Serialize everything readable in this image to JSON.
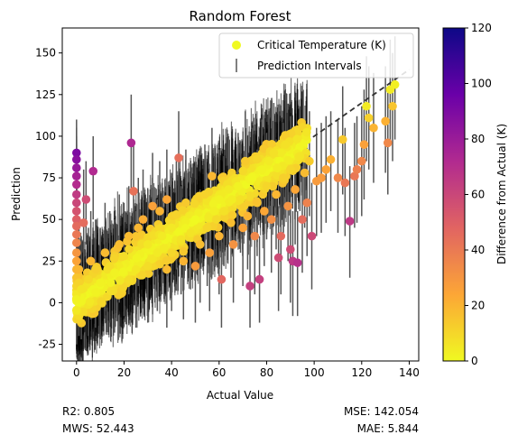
{
  "chart_data": {
    "type": "scatter",
    "title": "Random Forest",
    "xlabel": "Actual Value",
    "ylabel": "Prediction",
    "xlim": [
      -6,
      144
    ],
    "ylim": [
      -35,
      165
    ],
    "xticks": [
      0,
      20,
      40,
      60,
      80,
      100,
      120,
      140
    ],
    "yticks": [
      -25,
      0,
      25,
      50,
      75,
      100,
      125,
      150
    ],
    "grid": false,
    "legend": {
      "placement": "top-right",
      "entries": [
        {
          "label": "Critical Temperature (K)",
          "marker": "circle",
          "color": "#f0f921"
        },
        {
          "label": "Prediction Intervals",
          "marker": "vline",
          "color": "#555555"
        }
      ]
    },
    "reference_line": {
      "label": "",
      "x": [
        0,
        140
      ],
      "y": [
        0,
        140
      ],
      "style": "dashed",
      "color": "#333333"
    },
    "colorbar": {
      "label": "Difference from Actual (K)",
      "min": 0,
      "max": 120,
      "ticks": [
        0,
        20,
        40,
        60,
        80,
        100,
        120
      ],
      "colormap": "plasma_r",
      "stops": [
        "#f0f921",
        "#fca636",
        "#e16462",
        "#b12a90",
        "#6a00a8",
        "#0d0887"
      ]
    },
    "stats": {
      "r2": "R2: 0.805",
      "mws": "MWS: 52.443",
      "mse": "MSE: 142.054",
      "mae": "MAE: 5.844"
    },
    "points": [
      {
        "x": 0,
        "y": 90,
        "lo": 55,
        "hi": 110
      },
      {
        "x": 0,
        "y": 86,
        "lo": 50,
        "hi": 105
      },
      {
        "x": 0,
        "y": 81,
        "lo": 45,
        "hi": 100
      },
      {
        "x": 0,
        "y": 76,
        "lo": 40,
        "hi": 98
      },
      {
        "x": 0,
        "y": 71,
        "lo": 35,
        "hi": 95
      },
      {
        "x": 0,
        "y": 65,
        "lo": 30,
        "hi": 92
      },
      {
        "x": 0,
        "y": 60,
        "lo": 25,
        "hi": 88
      },
      {
        "x": 0,
        "y": 55,
        "lo": 20,
        "hi": 85
      },
      {
        "x": 0,
        "y": 50,
        "lo": 15,
        "hi": 80
      },
      {
        "x": 0,
        "y": 46,
        "lo": 10,
        "hi": 75
      },
      {
        "x": 0,
        "y": 41,
        "lo": 5,
        "hi": 70
      },
      {
        "x": 0,
        "y": 36,
        "lo": 0,
        "hi": 65
      },
      {
        "x": 0,
        "y": 30,
        "lo": -5,
        "hi": 60
      },
      {
        "x": 0,
        "y": 25,
        "lo": -10,
        "hi": 55
      },
      {
        "x": 0,
        "y": 20,
        "lo": -15,
        "hi": 50
      },
      {
        "x": 0,
        "y": 15,
        "lo": -20,
        "hi": 45
      },
      {
        "x": 0,
        "y": 10,
        "lo": -22,
        "hi": 40
      },
      {
        "x": 0,
        "y": 5,
        "lo": -25,
        "hi": 35
      },
      {
        "x": 0,
        "y": 2,
        "lo": -25,
        "hi": 30
      },
      {
        "x": 1,
        "y": 20,
        "lo": -15,
        "hi": 50
      },
      {
        "x": 1,
        "y": 12,
        "lo": -20,
        "hi": 45
      },
      {
        "x": 2,
        "y": 8,
        "lo": -22,
        "hi": 40
      },
      {
        "x": 3,
        "y": 48,
        "lo": 20,
        "hi": 80
      },
      {
        "x": 4,
        "y": 62,
        "lo": 35,
        "hi": 85
      },
      {
        "x": 5,
        "y": 14,
        "lo": -20,
        "hi": 45
      },
      {
        "x": 6,
        "y": 25,
        "lo": -10,
        "hi": 55
      },
      {
        "x": 7,
        "y": 79,
        "lo": 50,
        "hi": 100
      },
      {
        "x": 8,
        "y": 20,
        "lo": -15,
        "hi": 50
      },
      {
        "x": 10,
        "y": 12,
        "lo": -22,
        "hi": 45
      },
      {
        "x": 12,
        "y": 30,
        "lo": -5,
        "hi": 60
      },
      {
        "x": 14,
        "y": 22,
        "lo": -12,
        "hi": 55
      },
      {
        "x": 16,
        "y": 18,
        "lo": -18,
        "hi": 50
      },
      {
        "x": 18,
        "y": 35,
        "lo": 0,
        "hi": 65
      },
      {
        "x": 20,
        "y": 28,
        "lo": -8,
        "hi": 60
      },
      {
        "x": 23,
        "y": 96,
        "lo": 65,
        "hi": 125
      },
      {
        "x": 22,
        "y": 40,
        "lo": 5,
        "hi": 70
      },
      {
        "x": 24,
        "y": 67,
        "lo": 35,
        "hi": 95
      },
      {
        "x": 25,
        "y": 20,
        "lo": -15,
        "hi": 55
      },
      {
        "x": 26,
        "y": 45,
        "lo": 10,
        "hi": 75
      },
      {
        "x": 28,
        "y": 50,
        "lo": 15,
        "hi": 80
      },
      {
        "x": 30,
        "y": 35,
        "lo": 0,
        "hi": 68
      },
      {
        "x": 30,
        "y": 22,
        "lo": -12,
        "hi": 55
      },
      {
        "x": 32,
        "y": 58,
        "lo": 25,
        "hi": 90
      },
      {
        "x": 34,
        "y": 30,
        "lo": -5,
        "hi": 62
      },
      {
        "x": 35,
        "y": 55,
        "lo": 20,
        "hi": 85
      },
      {
        "x": 36,
        "y": 40,
        "lo": 5,
        "hi": 72
      },
      {
        "x": 38,
        "y": 20,
        "lo": -15,
        "hi": 55
      },
      {
        "x": 38,
        "y": 62,
        "lo": 30,
        "hi": 92
      },
      {
        "x": 40,
        "y": 45,
        "lo": 10,
        "hi": 78
      },
      {
        "x": 40,
        "y": 30,
        "lo": -5,
        "hi": 62
      },
      {
        "x": 42,
        "y": 53,
        "lo": 20,
        "hi": 85
      },
      {
        "x": 43,
        "y": 87,
        "lo": 55,
        "hi": 115
      },
      {
        "x": 44,
        "y": 38,
        "lo": 5,
        "hi": 70
      },
      {
        "x": 45,
        "y": 25,
        "lo": -10,
        "hi": 58
      },
      {
        "x": 46,
        "y": 60,
        "lo": 28,
        "hi": 92
      },
      {
        "x": 48,
        "y": 42,
        "lo": 8,
        "hi": 75
      },
      {
        "x": 50,
        "y": 50,
        "lo": 15,
        "hi": 82
      },
      {
        "x": 50,
        "y": 22,
        "lo": -12,
        "hi": 55
      },
      {
        "x": 52,
        "y": 35,
        "lo": 0,
        "hi": 68
      },
      {
        "x": 54,
        "y": 65,
        "lo": 32,
        "hi": 95
      },
      {
        "x": 55,
        "y": 45,
        "lo": 10,
        "hi": 78
      },
      {
        "x": 56,
        "y": 30,
        "lo": -5,
        "hi": 62
      },
      {
        "x": 57,
        "y": 76,
        "lo": 45,
        "hi": 105
      },
      {
        "x": 58,
        "y": 55,
        "lo": 22,
        "hi": 88
      },
      {
        "x": 60,
        "y": 40,
        "lo": 5,
        "hi": 72
      },
      {
        "x": 60,
        "y": 62,
        "lo": 30,
        "hi": 92
      },
      {
        "x": 61,
        "y": 14,
        "lo": -15,
        "hi": 40
      },
      {
        "x": 62,
        "y": 55,
        "lo": 22,
        "hi": 88
      },
      {
        "x": 64,
        "y": 68,
        "lo": 35,
        "hi": 100
      },
      {
        "x": 65,
        "y": 48,
        "lo": 15,
        "hi": 80
      },
      {
        "x": 66,
        "y": 35,
        "lo": 0,
        "hi": 68
      },
      {
        "x": 68,
        "y": 70,
        "lo": 38,
        "hi": 102
      },
      {
        "x": 69,
        "y": 62,
        "lo": 30,
        "hi": 95
      },
      {
        "x": 70,
        "y": 45,
        "lo": 10,
        "hi": 78
      },
      {
        "x": 71,
        "y": 85,
        "lo": 55,
        "hi": 115
      },
      {
        "x": 72,
        "y": 52,
        "lo": 20,
        "hi": 85
      },
      {
        "x": 73,
        "y": 10,
        "lo": -15,
        "hi": 35
      },
      {
        "x": 74,
        "y": 75,
        "lo": 42,
        "hi": 105
      },
      {
        "x": 75,
        "y": 40,
        "lo": 5,
        "hi": 72
      },
      {
        "x": 76,
        "y": 60,
        "lo": 28,
        "hi": 92
      },
      {
        "x": 77,
        "y": 14,
        "lo": -12,
        "hi": 40
      },
      {
        "x": 78,
        "y": 80,
        "lo": 48,
        "hi": 110
      },
      {
        "x": 79,
        "y": 55,
        "lo": 22,
        "hi": 88
      },
      {
        "x": 80,
        "y": 70,
        "lo": 38,
        "hi": 102
      },
      {
        "x": 81,
        "y": 85,
        "lo": 52,
        "hi": 115
      },
      {
        "x": 82,
        "y": 50,
        "lo": 18,
        "hi": 82
      },
      {
        "x": 83,
        "y": 90,
        "lo": 58,
        "hi": 120
      },
      {
        "x": 84,
        "y": 65,
        "lo": 32,
        "hi": 98
      },
      {
        "x": 85,
        "y": 27,
        "lo": -5,
        "hi": 58
      },
      {
        "x": 86,
        "y": 40,
        "lo": 5,
        "hi": 72
      },
      {
        "x": 87,
        "y": 75,
        "lo": 42,
        "hi": 108
      },
      {
        "x": 88,
        "y": 95,
        "lo": 62,
        "hi": 125
      },
      {
        "x": 89,
        "y": 58,
        "lo": 25,
        "hi": 90
      },
      {
        "x": 90,
        "y": 32,
        "lo": 0,
        "hi": 65
      },
      {
        "x": 90,
        "y": 80,
        "lo": 48,
        "hi": 112
      },
      {
        "x": 91,
        "y": 25,
        "lo": -8,
        "hi": 55
      },
      {
        "x": 92,
        "y": 68,
        "lo": 35,
        "hi": 100
      },
      {
        "x": 93,
        "y": 24,
        "lo": -8,
        "hi": 55
      },
      {
        "x": 94,
        "y": 88,
        "lo": 55,
        "hi": 118
      },
      {
        "x": 95,
        "y": 50,
        "lo": 18,
        "hi": 82
      },
      {
        "x": 96,
        "y": 78,
        "lo": 45,
        "hi": 110
      },
      {
        "x": 97,
        "y": 60,
        "lo": 28,
        "hi": 92
      },
      {
        "x": 98,
        "y": 85,
        "lo": 52,
        "hi": 115
      },
      {
        "x": 99,
        "y": 40,
        "lo": 8,
        "hi": 72
      },
      {
        "x": 101,
        "y": 73,
        "lo": 40,
        "hi": 105
      },
      {
        "x": 103,
        "y": 75,
        "lo": 42,
        "hi": 108
      },
      {
        "x": 105,
        "y": 80,
        "lo": 48,
        "hi": 112
      },
      {
        "x": 107,
        "y": 86,
        "lo": 55,
        "hi": 115
      },
      {
        "x": 110,
        "y": 75,
        "lo": 42,
        "hi": 110
      },
      {
        "x": 112,
        "y": 98,
        "lo": 65,
        "hi": 130
      },
      {
        "x": 113,
        "y": 72,
        "lo": 40,
        "hi": 105
      },
      {
        "x": 115,
        "y": 49,
        "lo": 15,
        "hi": 82
      },
      {
        "x": 117,
        "y": 76,
        "lo": 45,
        "hi": 108
      },
      {
        "x": 118,
        "y": 80,
        "lo": 48,
        "hi": 112
      },
      {
        "x": 120,
        "y": 85,
        "lo": 52,
        "hi": 118
      },
      {
        "x": 121,
        "y": 95,
        "lo": 62,
        "hi": 128
      },
      {
        "x": 122,
        "y": 118,
        "lo": 85,
        "hi": 148
      },
      {
        "x": 123,
        "y": 111,
        "lo": 80,
        "hi": 142
      },
      {
        "x": 125,
        "y": 105,
        "lo": 72,
        "hi": 138
      },
      {
        "x": 130,
        "y": 109,
        "lo": 78,
        "hi": 142
      },
      {
        "x": 131,
        "y": 96,
        "lo": 65,
        "hi": 130
      },
      {
        "x": 132,
        "y": 128,
        "lo": 95,
        "hi": 158
      },
      {
        "x": 133,
        "y": 118,
        "lo": 85,
        "hi": 150
      },
      {
        "x": 134,
        "y": 131,
        "lo": 98,
        "hi": 160
      }
    ]
  }
}
